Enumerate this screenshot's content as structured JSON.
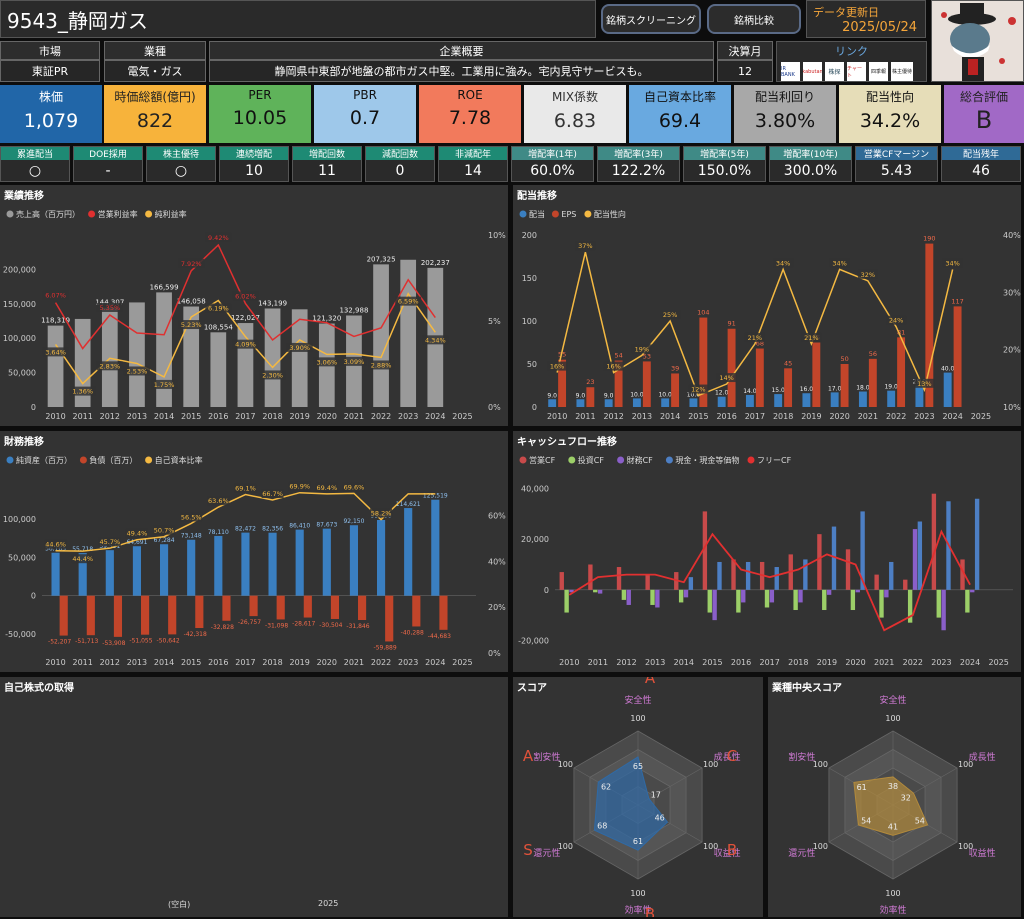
{
  "header": {
    "title": "9543_静岡ガス",
    "screening_btn": "銘柄スクリーニング",
    "compare_btn": "銘柄比較",
    "update_label": "データ更新日",
    "update_date": "2025/05/24"
  },
  "info": {
    "market_label": "市場",
    "market": "東証PR",
    "industry_label": "業種",
    "industry": "電気・ガス",
    "overview_label": "企業概要",
    "overview": "静岡県中東部が地盤の都市ガス中堅。工業用に強み。宅内見守サービスも。",
    "fiscal_label": "決算月",
    "fiscal": "12",
    "link_label": "リンク",
    "links": [
      "IR BANK",
      "kabutan",
      "株探",
      "チャート",
      "四季報",
      "株主優待"
    ]
  },
  "metrics": [
    {
      "label": "株価",
      "value": "1,079",
      "bg": "#2166a8",
      "fg": "#ffffff"
    },
    {
      "label": "時価総額(億円)",
      "value": "822",
      "bg": "#f7b33b",
      "fg": "#222222"
    },
    {
      "label": "PER",
      "value": "10.05",
      "bg": "#5fb35a",
      "fg": "#111111"
    },
    {
      "label": "PBR",
      "value": "0.7",
      "bg": "#9ec8ea",
      "fg": "#111111"
    },
    {
      "label": "ROE",
      "value": "7.78",
      "bg": "#f27a5c",
      "fg": "#111111"
    },
    {
      "label": "MIX係数",
      "value": "6.83",
      "bg": "#e9e9e9",
      "fg": "#333333"
    },
    {
      "label": "自己資本比率",
      "value": "69.4",
      "bg": "#69a9e0",
      "fg": "#111111"
    },
    {
      "label": "配当利回り",
      "value": "3.80%",
      "bg": "#a8a8a8",
      "fg": "#111111"
    },
    {
      "label": "配当性向",
      "value": "34.2%",
      "bg": "#e6ddb8",
      "fg": "#111111"
    },
    {
      "label": "総合評価",
      "value": "B",
      "bg": "#a169c6",
      "fg": "#222222"
    }
  ],
  "stats": [
    {
      "label": "累進配当",
      "value": "○",
      "bg": "#1e8a74"
    },
    {
      "label": "DOE採用",
      "value": "-",
      "bg": "#1e8a74"
    },
    {
      "label": "株主優待",
      "value": "○",
      "bg": "#1e8a74"
    },
    {
      "label": "連続増配",
      "value": "10",
      "bg": "#1e8a74"
    },
    {
      "label": "増配回数",
      "value": "11",
      "bg": "#1e8a74"
    },
    {
      "label": "減配回数",
      "value": "0",
      "bg": "#1e8a74"
    },
    {
      "label": "非減配年",
      "value": "14",
      "bg": "#1e8a74"
    },
    {
      "label": "増配率(1年)",
      "value": "60.0%",
      "bg": "#3f8a86"
    },
    {
      "label": "増配率(3年)",
      "value": "122.2%",
      "bg": "#3f8a86"
    },
    {
      "label": "増配率(5年)",
      "value": "150.0%",
      "bg": "#3f8a86"
    },
    {
      "label": "増配率(10年)",
      "value": "300.0%",
      "bg": "#3f8a86"
    },
    {
      "label": "営業CFマージン",
      "value": "5.43",
      "bg": "#2f6a96"
    },
    {
      "label": "配当残年",
      "value": "46",
      "bg": "#2f6a96"
    }
  ],
  "chart_data": [
    {
      "type": "bar",
      "title": "業績推移",
      "categories": [
        "2010",
        "2011",
        "2012",
        "2013",
        "2014",
        "2015",
        "2016",
        "2017",
        "2018",
        "2019",
        "2020",
        "2021",
        "2022",
        "2023",
        "2024",
        "2025"
      ],
      "series": [
        {
          "name": "売上高（百万円）",
          "color": "#9a9a9a",
          "values": [
            118319,
            128000,
            144307,
            152000,
            166599,
            146058,
            108554,
            122027,
            143199,
            142000,
            121320,
            132988,
            207325,
            214000,
            202237,
            null
          ],
          "labels": [
            "118,319",
            "",
            "144,307",
            "",
            "166,599",
            "146,058",
            "108,554",
            "122,027",
            "143,199",
            "",
            "121,320",
            "132,988",
            "207,325",
            "",
            "202,237",
            ""
          ]
        },
        {
          "name": "営業利益率",
          "color": "#e03030",
          "values": [
            6.07,
            3.4,
            5.35,
            4.3,
            4.2,
            7.92,
            9.42,
            6.02,
            3.9,
            5.1,
            4.9,
            4.1,
            4.6,
            7.4,
            5.2,
            null
          ],
          "labels": [
            "6.07%",
            "",
            "5.35%",
            "",
            "",
            "7.92%",
            "9.42%",
            "6.02%",
            "",
            "",
            "",
            "",
            "",
            "",
            "",
            ""
          ]
        },
        {
          "name": "純利益率",
          "color": "#f4b942",
          "values": [
            3.64,
            1.36,
            2.83,
            2.53,
            1.75,
            5.23,
            6.19,
            4.09,
            2.3,
            3.9,
            3.06,
            3.09,
            2.88,
            6.59,
            4.34,
            null
          ],
          "labels": [
            "3.64%",
            "1.36%",
            "2.83%",
            "2.53%",
            "1.75%",
            "5.23%",
            "6.19%",
            "4.09%",
            "2.30%",
            "3.90%",
            "3.06%",
            "3.09%",
            "2.88%",
            "6.59%",
            "4.34%",
            ""
          ]
        }
      ],
      "yleft": {
        "ticks": [
          "0",
          "50,000",
          "100,000",
          "150,000",
          "200,000"
        ],
        "max": 250000
      },
      "yright": {
        "ticks": [
          "0%",
          "5%",
          "10%"
        ],
        "max": 10
      },
      "legend": "top-left"
    },
    {
      "type": "bar",
      "title": "配当推移",
      "categories": [
        "2010",
        "2011",
        "2012",
        "2013",
        "2014",
        "2015",
        "2016",
        "2017",
        "2018",
        "2019",
        "2020",
        "2021",
        "2022",
        "2023",
        "2024",
        "2025"
      ],
      "series": [
        {
          "name": "配当",
          "color": "#3a7fc1",
          "values": [
            9.0,
            9.0,
            9.0,
            10.0,
            10.0,
            10.0,
            12.0,
            14.0,
            15.0,
            16.0,
            17.0,
            18.0,
            19.0,
            25.0,
            40.0,
            null
          ],
          "labels": [
            "9.0",
            "9.0",
            "9.0",
            "10.0",
            "10.0",
            "10.0",
            "12.0",
            "14.0",
            "15.0",
            "16.0",
            "17.0",
            "18.0",
            "19.0",
            "25.0",
            "40.0",
            ""
          ]
        },
        {
          "name": "EPS",
          "color": "#c2452a",
          "values": [
            55,
            23,
            54,
            53,
            39,
            104,
            91,
            68,
            45,
            75,
            50,
            56,
            81,
            190,
            117,
            null
          ],
          "labels": [
            "55",
            "23",
            "54",
            "53",
            "39",
            "104",
            "91",
            "68",
            "45",
            "75",
            "50",
            "56",
            "81",
            "190",
            "117",
            ""
          ]
        },
        {
          "name": "配当性向",
          "color": "#f4b942",
          "values": [
            16,
            37,
            16,
            19,
            25,
            12,
            14,
            21,
            34,
            21,
            34,
            32,
            24,
            13,
            34,
            null
          ],
          "labels": [
            "16%",
            "37%",
            "16%",
            "19%",
            "25%",
            "12%",
            "14%",
            "21%",
            "34%",
            "21%",
            "34%",
            "32%",
            "24%",
            "13%",
            "34%",
            ""
          ]
        }
      ],
      "yleft": {
        "ticks": [
          "0",
          "50",
          "100",
          "150",
          "200"
        ],
        "max": 200
      },
      "yright": {
        "ticks": [
          "10%",
          "20%",
          "30%",
          "40%"
        ],
        "min": 10,
        "max": 40
      },
      "legend": "top-left"
    },
    {
      "type": "bar",
      "title": "財務推移",
      "categories": [
        "2010",
        "2011",
        "2012",
        "2013",
        "2014",
        "2015",
        "2016",
        "2017",
        "2018",
        "2019",
        "2020",
        "2021",
        "2022",
        "2023",
        "2024",
        "2025"
      ],
      "series": [
        {
          "name": "純資産（百万）",
          "color": "#3a7fc1",
          "values": [
            56165,
            55718,
            59521,
            64691,
            67284,
            73148,
            78110,
            82472,
            82356,
            86410,
            87673,
            92150,
            99000,
            114621,
            125519,
            null
          ],
          "labels": [
            "56,165",
            "55,718",
            "59,521",
            "64,691",
            "67,284",
            "73,148",
            "78,110",
            "82,472",
            "82,356",
            "86,410",
            "87,673",
            "92,150",
            "99,000",
            "114,621",
            "125,519",
            ""
          ]
        },
        {
          "name": "負債（百万）",
          "color": "#c2452a",
          "values": [
            -52207,
            -51713,
            -53908,
            -51055,
            -50642,
            -42318,
            -32828,
            -26757,
            -31098,
            -28617,
            -30504,
            -31846,
            -59889,
            -40288,
            -44683,
            null
          ],
          "labels": [
            "-52,207",
            "-51,713",
            "-53,908",
            "-51,055",
            "-50,642",
            "-42,318",
            "-32,828",
            "-26,757",
            "-31,098",
            "-28,617",
            "-30,504",
            "-31,846",
            "-59,889",
            "-40,288",
            "-44,683",
            ""
          ]
        },
        {
          "name": "自己資本比率",
          "color": "#f4b942",
          "values": [
            44.6,
            44.4,
            45.7,
            49.4,
            50.7,
            56.5,
            63.6,
            69.1,
            66.7,
            69.9,
            69.4,
            69.6,
            58.2,
            69.4,
            69.4,
            null
          ],
          "labels": [
            "44.6%",
            "44.4%",
            "45.7%",
            "49.4%",
            "50.7%",
            "56.5%",
            "63.6%",
            "69.1%",
            "66.7%",
            "69.9%",
            "69.4%",
            "69.6%",
            "58.2%",
            "",
            "",
            " "
          ]
        }
      ],
      "yleft": {
        "ticks": [
          "-50,000",
          "0",
          "50,000",
          "100,000"
        ],
        "min": -75000,
        "max": 150000
      },
      "yright": {
        "ticks": [
          "0%",
          "20%",
          "40%",
          "60%"
        ],
        "max": 75
      },
      "legend": "top-left"
    },
    {
      "type": "bar",
      "title": "キャッシュフロー推移",
      "categories": [
        "2010",
        "2011",
        "2012",
        "2013",
        "2014",
        "2015",
        "2016",
        "2017",
        "2018",
        "2019",
        "2020",
        "2021",
        "2022",
        "2023",
        "2024",
        "2025"
      ],
      "series": [
        {
          "name": "営業CF",
          "color": "#c84a4a",
          "values": [
            7000,
            10000,
            9000,
            6000,
            7000,
            31000,
            12000,
            11000,
            14000,
            22000,
            16000,
            6000,
            4000,
            38000,
            12000,
            null
          ]
        },
        {
          "name": "投資CF",
          "color": "#9ccf68",
          "values": [
            -9000,
            -1000,
            -4000,
            -6000,
            -5000,
            -9000,
            -9000,
            -7000,
            -8000,
            -8000,
            -8000,
            -11000,
            -13000,
            -11000,
            -9000,
            null
          ]
        },
        {
          "name": "財務CF",
          "color": "#8a5fc9",
          "values": [
            -1000,
            -1500,
            -6000,
            -7000,
            -3000,
            -12000,
            -5000,
            -5000,
            -5000,
            -2000,
            -1000,
            -3000,
            24000,
            -16000,
            -1000,
            null
          ]
        },
        {
          "name": "現金・現金等価物",
          "color": "#4d7fc4",
          "values": [
            null,
            null,
            null,
            null,
            5000,
            11000,
            11000,
            9000,
            12000,
            25000,
            31000,
            11000,
            27000,
            35000,
            36000,
            null
          ]
        },
        {
          "name": "フリーCF",
          "color": "#e23030",
          "values": [
            -2000,
            5000,
            6000,
            6000,
            3000,
            22000,
            8000,
            5000,
            8000,
            14000,
            10000,
            -16000,
            -10000,
            23000,
            2000,
            null
          ]
        }
      ],
      "yleft": {
        "ticks": [
          "-20,000",
          "0",
          "20,000",
          "40,000"
        ],
        "min": -25000,
        "max": 45000
      },
      "legend": "top-left"
    },
    {
      "type": "bar",
      "title": "自己株式の取得",
      "categories": [
        "(空白)",
        "2025"
      ],
      "series": []
    }
  ],
  "score": {
    "title": "スコア",
    "axes": [
      "安全性",
      "成長性",
      "収益性",
      "効率性",
      "還元性",
      "割安性"
    ],
    "values": [
      65,
      17,
      46,
      61,
      68,
      62
    ],
    "grades": [
      "A",
      "C",
      "B",
      "B",
      "S",
      "A"
    ],
    "max": 100,
    "color": "#2f6aa6"
  },
  "industry_score": {
    "title": "業種中央スコア",
    "axes": [
      "安全性",
      "成長性",
      "収益性",
      "効率性",
      "還元性",
      "割安性"
    ],
    "values": [
      38,
      32,
      54,
      41,
      54,
      61
    ],
    "max": 100,
    "color": "#b28a3c"
  }
}
